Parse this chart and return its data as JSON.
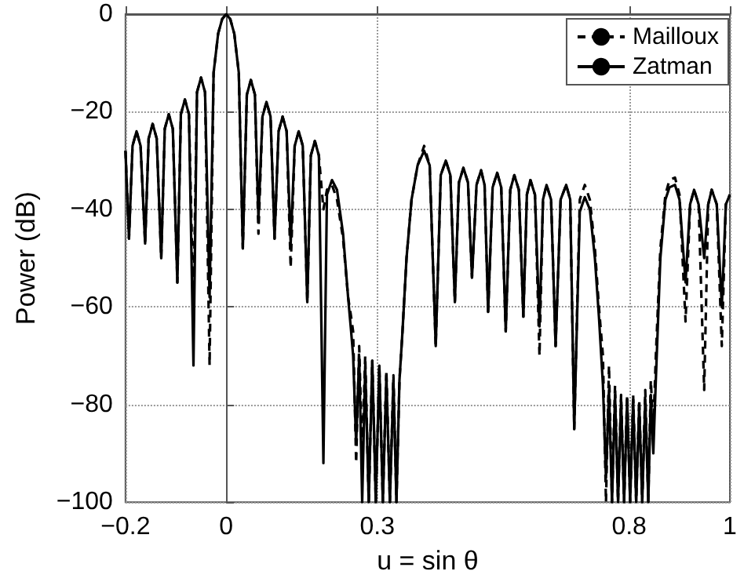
{
  "chart_data": {
    "type": "line",
    "xlabel": "u = sin θ",
    "ylabel": "Power (dB)",
    "xlim": [
      -0.2,
      1
    ],
    "xticks": [
      -0.2,
      0,
      0.3,
      0.8,
      1
    ],
    "ylim": [
      -100,
      0
    ],
    "yticks": [
      -100,
      -80,
      -60,
      -40,
      -20,
      0
    ],
    "grid": true,
    "legend": "top right",
    "x": [
      -0.2,
      -0.193,
      -0.186,
      -0.178,
      -0.17,
      -0.161,
      -0.154,
      -0.146,
      -0.138,
      -0.129,
      -0.122,
      -0.114,
      -0.106,
      -0.097,
      -0.09,
      -0.082,
      -0.074,
      -0.065,
      -0.058,
      -0.05,
      -0.042,
      -0.033,
      -0.025,
      -0.016,
      -0.008,
      0,
      0.008,
      0.016,
      0.025,
      0.033,
      0.041,
      0.049,
      0.057,
      0.064,
      0.072,
      0.08,
      0.088,
      0.096,
      0.104,
      0.112,
      0.12,
      0.128,
      0.136,
      0.144,
      0.152,
      0.161,
      0.168,
      0.176,
      0.184,
      0.193,
      0.2,
      0.21,
      0.22,
      0.232,
      0.242,
      0.248,
      0.252,
      0.258,
      0.264,
      0.27,
      0.276,
      0.283,
      0.29,
      0.297,
      0.304,
      0.311,
      0.318,
      0.325,
      0.332,
      0.338,
      0.344,
      0.35,
      0.358,
      0.368,
      0.38,
      0.393,
      0.404,
      0.416,
      0.426,
      0.436,
      0.445,
      0.454,
      0.462,
      0.471,
      0.48,
      0.488,
      0.497,
      0.506,
      0.513,
      0.52,
      0.529,
      0.538,
      0.546,
      0.555,
      0.564,
      0.572,
      0.581,
      0.59,
      0.597,
      0.604,
      0.613,
      0.622,
      0.629,
      0.636,
      0.645,
      0.654,
      0.664,
      0.675,
      0.683,
      0.691,
      0.702,
      0.712,
      0.722,
      0.732,
      0.74,
      0.748,
      0.754,
      0.76,
      0.766,
      0.772,
      0.778,
      0.784,
      0.79,
      0.796,
      0.802,
      0.808,
      0.814,
      0.82,
      0.826,
      0.832,
      0.838,
      0.843,
      0.848,
      0.853,
      0.862,
      0.872,
      0.88,
      0.891,
      0.9,
      0.912,
      0.921,
      0.929,
      0.938,
      0.949,
      0.957,
      0.964,
      0.974,
      0.984,
      0.992,
      1.0
    ],
    "series": [
      {
        "name": "Mailloux",
        "color": "#000000",
        "line_style": "dashed",
        "values": [
          -28,
          -46,
          -27,
          -24,
          -27,
          -47,
          -25.5,
          -22.5,
          -25.5,
          -50,
          -23.5,
          -20.5,
          -23.5,
          -55,
          -20.5,
          -17.5,
          -20.5,
          -60,
          -16,
          -13,
          -16,
          -72,
          -12,
          -4,
          -1,
          0,
          -1,
          -4,
          -12,
          -48,
          -16.5,
          -13.5,
          -16.5,
          -45,
          -21,
          -18,
          -21,
          -46,
          -24,
          -21,
          -24,
          -52,
          -27,
          -24,
          -27,
          -59,
          -29,
          -26,
          -29,
          -40,
          -36,
          -35,
          -38,
          -46,
          -58,
          -62,
          -65,
          -92,
          -68,
          -90,
          -70,
          -100,
          -71,
          -100,
          -72,
          -100,
          -73,
          -100,
          -74,
          -100,
          -75,
          -65,
          -50,
          -38,
          -31,
          -27,
          -31,
          -68,
          -33,
          -30,
          -33,
          -59,
          -34.5,
          -31.5,
          -34.5,
          -54,
          -35,
          -32,
          -35,
          -61,
          -35.5,
          -32.5,
          -35.5,
          -65,
          -36,
          -33,
          -36,
          -62,
          -37,
          -34,
          -37,
          -70,
          -38,
          -35,
          -38,
          -68,
          -38,
          -35,
          -38,
          -85,
          -38,
          -35,
          -38,
          -48,
          -60,
          -70,
          -100,
          -72,
          -100,
          -76,
          -100,
          -78,
          -100,
          -78,
          -100,
          -78,
          -100,
          -79,
          -100,
          -77,
          -100,
          -75,
          -85,
          -70,
          -48,
          -37,
          -34,
          -33.5,
          -37,
          -63,
          -39,
          -36,
          -39,
          -77,
          -39,
          -36,
          -39,
          -68,
          -39,
          -37
        ]
      },
      {
        "name": "Zatman",
        "color": "#000000",
        "line_style": "solid",
        "values": [
          -28,
          -46,
          -27,
          -24,
          -27,
          -47,
          -25.5,
          -22.5,
          -25.5,
          -50,
          -23.5,
          -20.5,
          -23.5,
          -55,
          -20.5,
          -17.5,
          -20.5,
          -72,
          -16,
          -13,
          -16,
          -58,
          -12,
          -4,
          -1,
          0,
          -1,
          -4,
          -12,
          -48,
          -16.5,
          -13.5,
          -16.5,
          -42,
          -21,
          -18,
          -21,
          -46,
          -24,
          -21,
          -24,
          -47,
          -27,
          -24,
          -27,
          -59,
          -29,
          -26,
          -29,
          -92,
          -37,
          -34,
          -36,
          -45,
          -58,
          -65,
          -70,
          -88,
          -70,
          -100,
          -72,
          -100,
          -71,
          -100,
          -72,
          -100,
          -74,
          -100,
          -75,
          -100,
          -75,
          -65,
          -50,
          -38,
          -31,
          -28,
          -31,
          -68,
          -33,
          -30,
          -33,
          -59,
          -34.5,
          -31.5,
          -34.5,
          -54,
          -35,
          -32,
          -35,
          -61,
          -35.5,
          -32.5,
          -35.5,
          -65,
          -36,
          -33,
          -36,
          -62,
          -37,
          -34,
          -37,
          -64,
          -38,
          -35,
          -38,
          -68,
          -38,
          -35,
          -38,
          -85,
          -40.5,
          -37.5,
          -40,
          -50,
          -62,
          -76,
          -95,
          -77,
          -100,
          -78,
          -100,
          -79,
          -100,
          -79,
          -100,
          -79,
          -100,
          -80,
          -100,
          -79,
          -100,
          -78,
          -90,
          -75,
          -50,
          -38,
          -35.5,
          -35,
          -38,
          -55,
          -39,
          -36,
          -39,
          -50,
          -39,
          -36,
          -39,
          -60,
          -39,
          -37
        ]
      }
    ]
  }
}
